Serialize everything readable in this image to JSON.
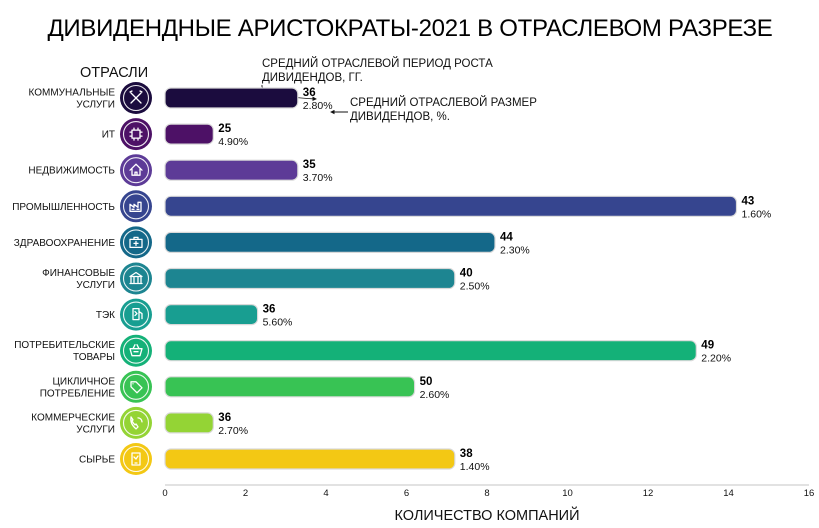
{
  "chart_data": {
    "type": "bar",
    "orientation": "horizontal",
    "title": "ДИВИДЕНДНЫЕ АРИСТОКРАТЫ-2021 В ОТРАСЛЕВОМ РАЗРЕЗЕ",
    "ylabel": "ОТРАСЛИ",
    "xlabel": "КОЛИЧЕСТВО КОМПАНИЙ",
    "xlim": [
      0,
      16
    ],
    "xticks": [
      "0",
      "2",
      "4",
      "6",
      "8",
      "10",
      "12",
      "14",
      "16"
    ],
    "legend": [
      "СРЕДНИЙ ОТРАСЛЕВОЙ ПЕРИОД РОСТА ДИВИДЕНДОВ, ГГ.",
      "СРЕДНИЙ ОТРАСЛЕВОЙ РАЗМЕР ДИВИДЕНДОВ, %."
    ],
    "categories": [
      "КОММУНАЛЬНЫЕ УСЛУГИ",
      "ИТ",
      "НЕДВИЖИМОСТЬ",
      "ПРОМЫШЛЕННОСТЬ",
      "ЗДРАВООХРАНЕНИЕ",
      "ФИНАНСОВЫЕ УСЛУГИ",
      "ТЭК",
      "ПОТРЕБИТЕЛЬСКИЕ ТОВАРЫ",
      "ЦИКЛИЧНОЕ ПОТРЕБЛЕНИЕ",
      "КОММЕРЧЕСКИЕ УСЛУГИ",
      "СЫРЬЕ"
    ],
    "category_lines": [
      [
        "КОММУНАЛЬНЫЕ",
        "УСЛУГИ"
      ],
      [
        "ИТ"
      ],
      [
        "НЕДВИЖИМОСТЬ"
      ],
      [
        "ПРОМЫШЛЕННОСТЬ"
      ],
      [
        "ЗДРАВООХРАНЕНИЕ"
      ],
      [
        "ФИНАНСОВЫЕ",
        "УСЛУГИ"
      ],
      [
        "ТЭК"
      ],
      [
        "ПОТРЕБИТЕЛЬСКИЕ",
        "ТОВАРЫ"
      ],
      [
        "ЦИКЛИЧНОЕ",
        "ПОТРЕБЛЕНИЕ"
      ],
      [
        "КОММЕРЧЕСКИЕ",
        "УСЛУГИ"
      ],
      [
        "СЫРЬЕ"
      ]
    ],
    "values": [
      3.3,
      1.2,
      3.3,
      14.2,
      8.2,
      7.2,
      2.3,
      13.2,
      6.2,
      1.2,
      7.2
    ],
    "growth_period": [
      "36",
      "25",
      "35",
      "43",
      "44",
      "40",
      "36",
      "49",
      "50",
      "36",
      "38"
    ],
    "dividend_size": [
      "2.80%",
      "4.90%",
      "3.70%",
      "1.60%",
      "2.30%",
      "2.50%",
      "5.60%",
      "2.20%",
      "2.60%",
      "2.70%",
      "1.40%"
    ],
    "colors": [
      "#1b0c3e",
      "#4d1166",
      "#5d3b97",
      "#36458f",
      "#146889",
      "#1d8591",
      "#189e91",
      "#14b178",
      "#38c354",
      "#94d435",
      "#f3c814"
    ],
    "icons": [
      "tools-icon",
      "chip-icon",
      "house-icon",
      "factory-icon",
      "medical-kit-icon",
      "bank-icon",
      "fuel-icon",
      "basket-icon",
      "tag-icon",
      "phone-icon",
      "phone-device-icon"
    ],
    "grid": false
  }
}
